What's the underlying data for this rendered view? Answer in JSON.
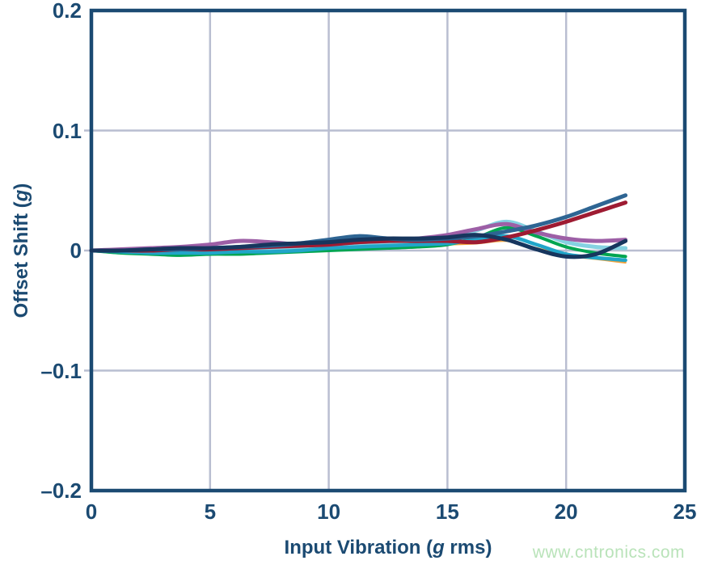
{
  "palette": {
    "axis": "#1b4a72",
    "grid": "#b9bed1",
    "background": "#ffffff",
    "watermark_color": "#b9e3b9"
  },
  "watermark": {
    "text": "www.cntronics.com"
  },
  "chart_data": {
    "type": "line",
    "title": "",
    "xlabel": {
      "prefix": "Input Vibration (",
      "italic": "g",
      "suffix": " rms)"
    },
    "ylabel": {
      "prefix": "Offset Shift (",
      "italic": "g",
      "suffix": ")"
    },
    "xlim": [
      0,
      25
    ],
    "ylim": [
      -0.2,
      0.2
    ],
    "grid": "on",
    "legend": "none",
    "x_ticks": [
      {
        "value": 0,
        "label": "0"
      },
      {
        "value": 5,
        "label": "5"
      },
      {
        "value": 10,
        "label": "10"
      },
      {
        "value": 15,
        "label": "15"
      },
      {
        "value": 20,
        "label": "20"
      },
      {
        "value": 25,
        "label": "25"
      }
    ],
    "y_ticks": [
      {
        "value": 0.2,
        "label": "0.2"
      },
      {
        "value": 0.1,
        "label": "0.1"
      },
      {
        "value": 0,
        "label": "0"
      },
      {
        "value": -0.1,
        "label": "–0.1"
      },
      {
        "value": -0.2,
        "label": "–0.2"
      }
    ],
    "x": [
      0,
      1.25,
      2.5,
      3.75,
      5,
      6.25,
      7.5,
      8.75,
      10,
      11.25,
      12.5,
      13.75,
      15,
      16.25,
      17.5,
      18.75,
      20,
      21.25,
      22.5
    ],
    "series": [
      {
        "name": "unit-orange",
        "color": "#f2a23c",
        "width": 2.5,
        "values": [
          0,
          -0.001,
          -0.002,
          -0.002,
          -0.002,
          -0.001,
          -0.001,
          0.0,
          0.001,
          0.002,
          0.003,
          0.004,
          0.005,
          0.006,
          0.008,
          0.002,
          -0.004,
          -0.007,
          -0.01
        ]
      },
      {
        "name": "unit-light-cyan",
        "color": "#85d2e2",
        "width": 5,
        "values": [
          0,
          -0.001,
          -0.002,
          -0.003,
          -0.002,
          -0.001,
          0.0,
          0.001,
          0.002,
          0.004,
          0.005,
          0.007,
          0.01,
          0.017,
          0.024,
          0.016,
          0.007,
          0.003,
          0.002
        ]
      },
      {
        "name": "unit-green",
        "color": "#00a551",
        "width": 4,
        "values": [
          0,
          -0.002,
          -0.003,
          -0.004,
          -0.003,
          -0.003,
          -0.002,
          -0.001,
          0.0,
          0.001,
          0.002,
          0.003,
          0.005,
          0.011,
          0.019,
          0.012,
          0.003,
          -0.002,
          -0.005
        ]
      },
      {
        "name": "unit-cyan",
        "color": "#21a5c9",
        "width": 4.5,
        "values": [
          0,
          -0.001,
          -0.002,
          -0.002,
          -0.002,
          -0.001,
          -0.001,
          0.0,
          0.002,
          0.003,
          0.004,
          0.005,
          0.006,
          0.009,
          0.012,
          0.005,
          -0.003,
          -0.006,
          -0.008
        ]
      },
      {
        "name": "unit-purple",
        "color": "#9d5fa6",
        "width": 5,
        "values": [
          0,
          0.001,
          0.002,
          0.003,
          0.005,
          0.008,
          0.007,
          0.005,
          0.005,
          0.007,
          0.008,
          0.01,
          0.013,
          0.018,
          0.022,
          0.015,
          0.01,
          0.008,
          0.009
        ]
      },
      {
        "name": "unit-crimson",
        "color": "#9e1b32",
        "width": 5,
        "values": [
          0,
          0.0,
          0.0,
          0.001,
          0.001,
          0.002,
          0.003,
          0.004,
          0.005,
          0.007,
          0.008,
          0.008,
          0.008,
          0.007,
          0.011,
          0.017,
          0.024,
          0.032,
          0.04
        ]
      },
      {
        "name": "unit-steel-blue",
        "color": "#2e6593",
        "width": 5,
        "values": [
          0,
          0.0,
          0.001,
          0.001,
          0.002,
          0.003,
          0.004,
          0.006,
          0.009,
          0.012,
          0.01,
          0.009,
          0.01,
          0.012,
          0.016,
          0.021,
          0.028,
          0.037,
          0.046
        ]
      },
      {
        "name": "unit-navy",
        "color": "#17365e",
        "width": 5,
        "values": [
          0,
          0.0,
          0.001,
          0.002,
          0.002,
          0.003,
          0.005,
          0.006,
          0.007,
          0.009,
          0.01,
          0.01,
          0.011,
          0.013,
          0.009,
          0.001,
          -0.005,
          -0.003,
          0.008
        ]
      }
    ]
  }
}
